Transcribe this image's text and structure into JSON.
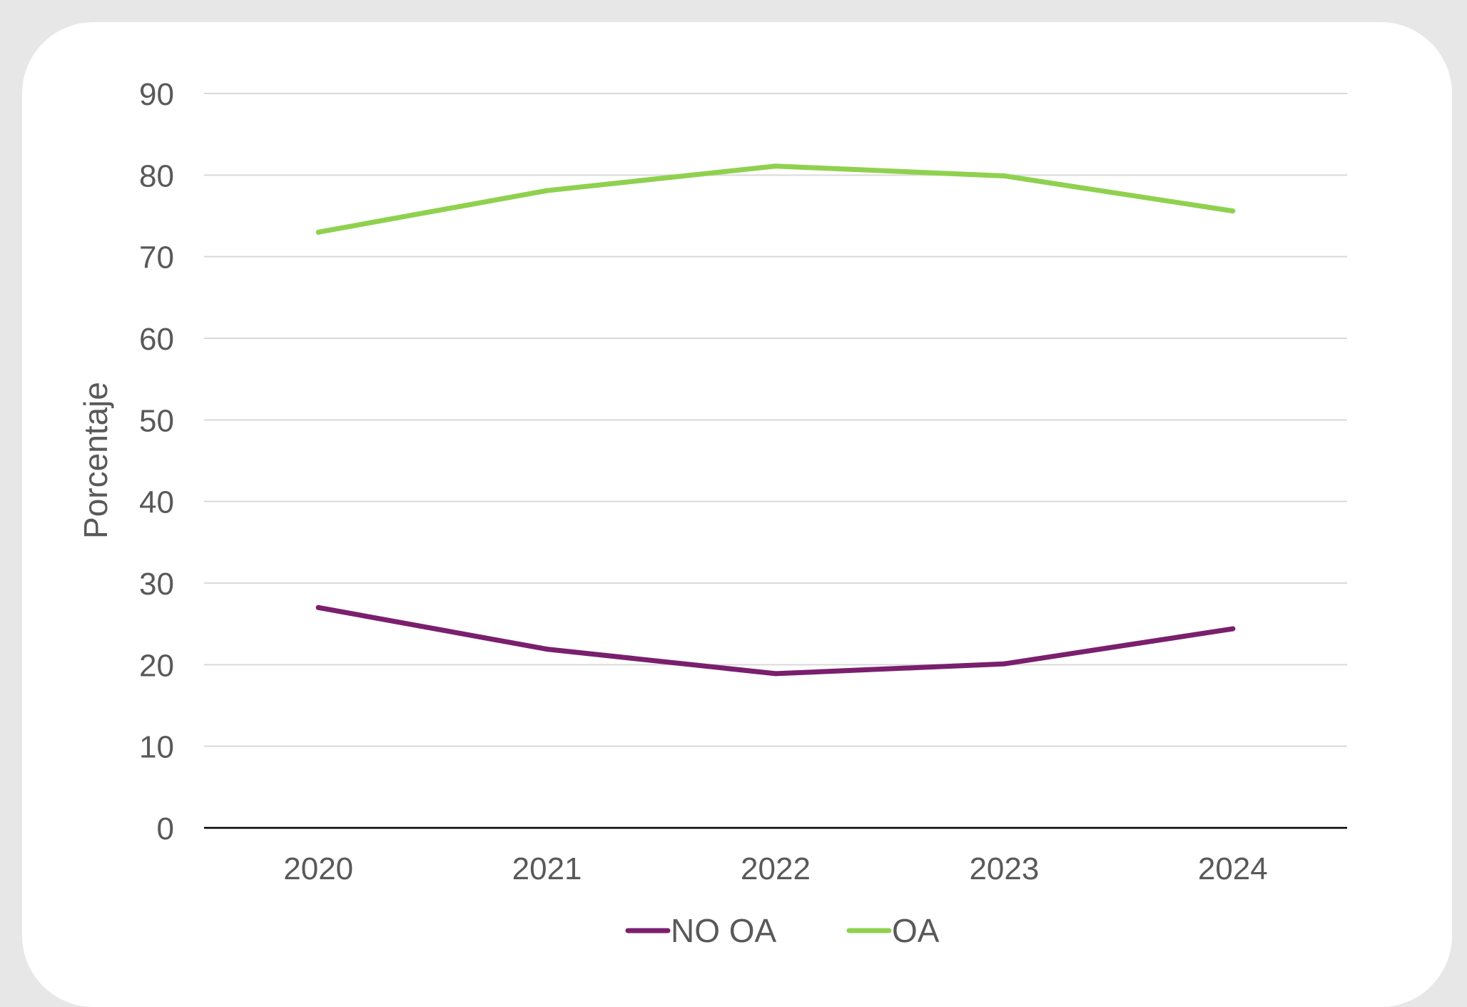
{
  "chart_data": {
    "type": "line",
    "categories": [
      "2020",
      "2021",
      "2022",
      "2023",
      "2024"
    ],
    "series": [
      {
        "name": "NO OA",
        "values": [
          27,
          21.9,
          18.9,
          20.1,
          24.4
        ],
        "color": "#7a1f6e"
      },
      {
        "name": "OA",
        "values": [
          73,
          78.1,
          81.1,
          79.9,
          75.6
        ],
        "color": "#8fd14f"
      }
    ],
    "ylabel": "Porcentaje",
    "ylim": [
      0,
      90
    ],
    "yticks": [
      0,
      10,
      20,
      30,
      40,
      50,
      60,
      70,
      80,
      90
    ],
    "grid": true,
    "legend": "bottom-center",
    "gridline_color": "#d9d9d9",
    "axis_color": "#000000"
  }
}
